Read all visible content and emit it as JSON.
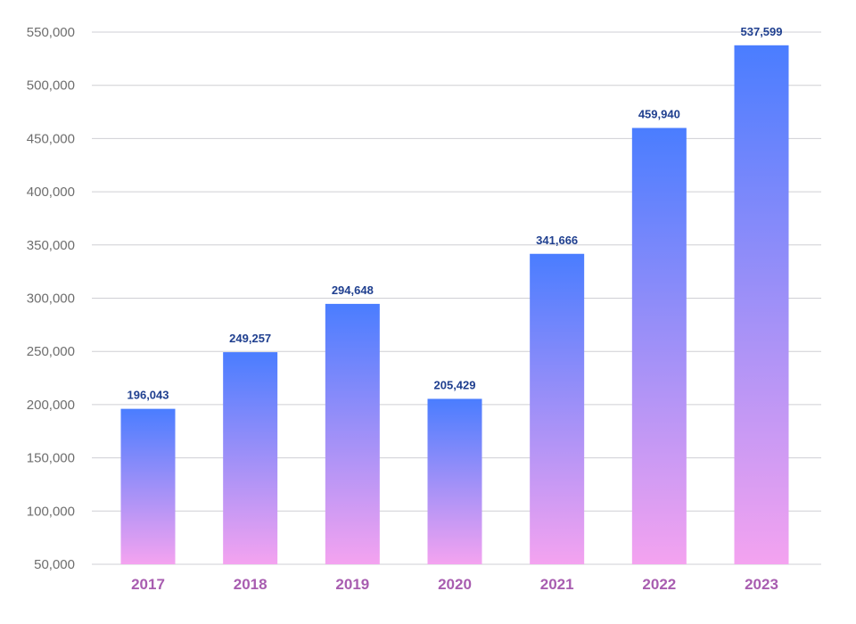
{
  "chart_data": {
    "type": "bar",
    "title": "",
    "xlabel": "",
    "ylabel": "",
    "categories": [
      "2017",
      "2018",
      "2019",
      "2020",
      "2021",
      "2022",
      "2023"
    ],
    "values": [
      196043,
      249257,
      294648,
      205429,
      341666,
      459940,
      537599
    ],
    "value_labels": [
      "196,043",
      "249,257",
      "294,648",
      "205,429",
      "341,666",
      "459,940",
      "537,599"
    ],
    "ylim": [
      50000,
      550000
    ],
    "yticks": [
      50000,
      100000,
      150000,
      200000,
      250000,
      300000,
      350000,
      400000,
      450000,
      500000,
      550000
    ],
    "ytick_labels": [
      "50,000",
      "100,000",
      "150,000",
      "200,000",
      "250,000",
      "300,000",
      "350,000",
      "400,000",
      "450,000",
      "500,000",
      "550,000"
    ],
    "grid": true,
    "legend": "none"
  },
  "colors": {
    "bar_top": "#4a7dff",
    "bar_bottom": "#f4a3f0",
    "grid": "#cfcfd4",
    "ytick_text": "#6e6e6e",
    "xtick_text": "#a85db0",
    "data_label_text": "#1f3f8f"
  }
}
